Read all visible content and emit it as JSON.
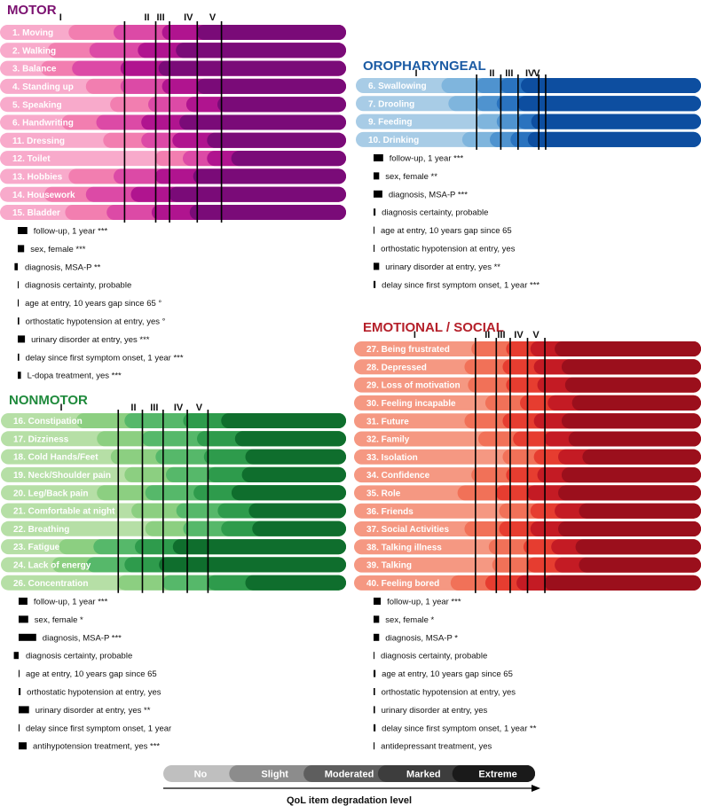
{
  "chart_data": {
    "type": "bar",
    "panels": [
      {
        "id": "motor",
        "title": "MOTOR",
        "title_color": "#7b1170",
        "shades": [
          "#f8aacb",
          "#f27eb0",
          "#dc4aa6",
          "#b0148f",
          "#7a0b78"
        ],
        "stage_labels": [
          "I",
          "II",
          "III",
          "IV",
          "V"
        ],
        "items": [
          {
            "label": "1. Moving",
            "thresholds": [
              22,
              35,
              49,
              59,
              74
            ]
          },
          {
            "label": "2. Walking",
            "thresholds": [
              16,
              28,
              42,
              53,
              68
            ]
          },
          {
            "label": "3. Balance",
            "thresholds": [
              14,
              23,
              37,
              48,
              63
            ]
          },
          {
            "label": "4. Standing up",
            "thresholds": [
              27,
              37,
              49,
              59,
              73
            ]
          },
          {
            "label": "5. Speaking",
            "thresholds": [
              34,
              45,
              56,
              65,
              79
            ]
          },
          {
            "label": "6. Handwriting",
            "thresholds": [
              20,
              30,
              43,
              54,
              68
            ]
          },
          {
            "label": "11. Dressing",
            "thresholds": [
              32,
              43,
              52,
              62,
              76
            ]
          },
          {
            "label": "12. Toilet",
            "thresholds": [
              47,
              55,
              62,
              69,
              80
            ]
          },
          {
            "label": "13. Hobbies",
            "thresholds": [
              22,
              35,
              47,
              58,
              72
            ]
          },
          {
            "label": "14. Housework",
            "thresholds": [
              15,
              27,
              40,
              51,
              66
            ]
          },
          {
            "label": "15. Bladder",
            "thresholds": [
              21,
              33,
              46,
              57,
              71
            ]
          }
        ],
        "stage_lines": [
          36,
          45,
          49,
          57,
          64
        ],
        "covariates": [
          {
            "label": "follow-up, 1 year ***",
            "value": 6
          },
          {
            "label": "sex, female ***",
            "value": 4
          },
          {
            "label": "diagnosis, MSA-P **",
            "value": -2
          },
          {
            "label": "diagnosis certainty, probable",
            "value": 0.3
          },
          {
            "label": "age at entry, 10 years gap since 65 °",
            "value": 0.6
          },
          {
            "label": "orthostatic hypotension at entry, yes °",
            "value": 0.9
          },
          {
            "label": "urinary disorder at entry, yes ***",
            "value": 4.5
          },
          {
            "label": "delay since first symptom onset, 1 year ***",
            "value": 0.9
          },
          {
            "label": "L-dopa treatment, yes ***",
            "value": 2
          }
        ]
      },
      {
        "id": "oropharyngeal",
        "title": "OROPHARYNGEAL",
        "title_color": "#1b5ba4",
        "shades": [
          "#a8cce6",
          "#7fb5dd",
          "#4f93cf",
          "#2a73bf",
          "#0d4ea0"
        ],
        "stage_labels": [
          "I",
          "II",
          "III",
          "IV",
          "V"
        ],
        "items": [
          {
            "label": "6. Swallowing",
            "thresholds": [
              27,
              37,
              44,
              50,
              57
            ]
          },
          {
            "label": "7. Drooling",
            "thresholds": [
              29,
              37,
              43,
              49,
              56
            ]
          },
          {
            "label": "9. Feeding",
            "thresholds": [
              37,
              43,
              49,
              53,
              59
            ]
          },
          {
            "label": "10. Drinking",
            "thresholds": [
              33,
              41,
              47,
              52,
              58
            ]
          }
        ],
        "stage_lines": [
          35,
          42,
          47,
          53,
          55
        ],
        "covariates": [
          {
            "label": "follow-up, 1 year ***",
            "value": 6
          },
          {
            "label": "sex, female **",
            "value": 3.5
          },
          {
            "label": "diagnosis, MSA-P ***",
            "value": 5.5
          },
          {
            "label": "diagnosis certainty, probable",
            "value": 1.2
          },
          {
            "label": "age at entry, 10 years gap since 65",
            "value": 0.3
          },
          {
            "label": "orthostatic hypotension at entry, yes",
            "value": 0.6
          },
          {
            "label": "urinary disorder at entry, yes **",
            "value": 3.5
          },
          {
            "label": "delay since first symptom onset, 1 year ***",
            "value": 1.2
          }
        ]
      },
      {
        "id": "nonmotor",
        "title": "NONMOTOR",
        "title_color": "#1f8a3c",
        "shades": [
          "#b6dfa6",
          "#8ccf81",
          "#56b86a",
          "#2e9b4c",
          "#0f6e2d"
        ],
        "stage_labels": [
          "I",
          "II",
          "III",
          "IV",
          "V"
        ],
        "items": [
          {
            "label": "16. Constipation",
            "thresholds": [
              24,
              38,
              55,
              66,
              82
            ]
          },
          {
            "label": "17. Dizziness",
            "thresholds": [
              30,
              43,
              59,
              70,
              86
            ]
          },
          {
            "label": "18. Cold Hands/Feet",
            "thresholds": [
              34,
              47,
              61,
              73,
              85
            ]
          },
          {
            "label": "19. Neck/Shoulder pain",
            "thresholds": [
              38,
              50,
              62,
              72,
              84
            ]
          },
          {
            "label": "20. Leg/Back pain",
            "thresholds": [
              30,
              44,
              58,
              69,
              82
            ]
          },
          {
            "label": "21. Comfortable at night",
            "thresholds": [
              40,
              53,
              65,
              74,
              86
            ]
          },
          {
            "label": "22. Breathing",
            "thresholds": [
              44,
              55,
              66,
              75,
              87
            ]
          },
          {
            "label": "23. Fatigue",
            "thresholds": [
              19,
              29,
              41,
              52,
              68
            ]
          },
          {
            "label": "24. Lack of energy",
            "thresholds": [
              17,
              27,
              38,
              48,
              64
            ]
          },
          {
            "label": "26. Concentration",
            "thresholds": [
              36,
              49,
              62,
              73,
              86
            ]
          }
        ],
        "stage_lines": [
          34,
          41,
          47,
          54,
          60
        ],
        "covariates": [
          {
            "label": "follow-up, 1 year ***",
            "value": 5.5
          },
          {
            "label": "sex, female *",
            "value": 6
          },
          {
            "label": "diagnosis, MSA-P ***",
            "value": 11
          },
          {
            "label": "diagnosis certainty, probable",
            "value": -3
          },
          {
            "label": "age at entry, 10 years gap since 65",
            "value": 0.3
          },
          {
            "label": "orthostatic hypotension at entry, yes",
            "value": 1.2
          },
          {
            "label": "urinary disorder at entry, yes **",
            "value": 6.5
          },
          {
            "label": "delay since first symptom onset, 1 year",
            "value": 0.3
          },
          {
            "label": "antihypotension treatment, yes ***",
            "value": 5
          }
        ]
      },
      {
        "id": "emotional",
        "title": "EMOTIONAL / SOCIAL",
        "title_color": "#b5202a",
        "shades": [
          "#f59882",
          "#f17158",
          "#e63d30",
          "#c41b24",
          "#9b0f1c"
        ],
        "stage_labels": [
          "I",
          "II",
          "III",
          "IV",
          "V"
        ],
        "items": [
          {
            "label": "27. Being frustrated",
            "thresholds": [
              36,
              46,
              53,
              60,
              70
            ]
          },
          {
            "label": "28. Depressed",
            "thresholds": [
              34,
              45,
              54,
              62,
              72
            ]
          },
          {
            "label": "29. Loss of motivation",
            "thresholds": [
              35,
              46,
              55,
              63,
              74
            ]
          },
          {
            "label": "30. Feeling incapable",
            "thresholds": [
              40,
              50,
              58,
              65,
              74
            ]
          },
          {
            "label": "31. Future",
            "thresholds": [
              34,
              45,
              54,
              62,
              71
            ]
          },
          {
            "label": "32. Family",
            "thresholds": [
              38,
              48,
              57,
              64,
              74
            ]
          },
          {
            "label": "33. Isolation",
            "thresholds": [
              45,
              54,
              61,
              68,
              77
            ]
          },
          {
            "label": "34. Confidence",
            "thresholds": [
              36,
              46,
              55,
              62,
              72
            ]
          },
          {
            "label": "35. Role",
            "thresholds": [
              32,
              43,
              52,
              61,
              71
            ]
          },
          {
            "label": "36. Friends",
            "thresholds": [
              44,
              53,
              60,
              67,
              76
            ]
          },
          {
            "label": "37. Social Activities",
            "thresholds": [
              34,
              44,
              53,
              61,
              70
            ]
          },
          {
            "label": "38. Talking illness",
            "thresholds": [
              41,
              51,
              59,
              66,
              76
            ]
          },
          {
            "label": "39. Talking",
            "thresholds": [
              42,
              52,
              60,
              67,
              77
            ]
          },
          {
            "label": "40. Feeling bored",
            "thresholds": [
              30,
              40,
              49,
              57,
              67
            ]
          }
        ],
        "stage_lines": [
          35,
          41,
          45,
          50,
          55
        ],
        "covariates": [
          {
            "label": "follow-up, 1 year ***",
            "value": 4.5
          },
          {
            "label": "sex, female *",
            "value": 3.5
          },
          {
            "label": "diagnosis, MSA-P *",
            "value": 3.5
          },
          {
            "label": "diagnosis certainty, probable",
            "value": 0.3
          },
          {
            "label": "age at entry, 10 years gap since 65",
            "value": 1.2
          },
          {
            "label": "orthostatic hypotension at entry, yes",
            "value": 0.9
          },
          {
            "label": "urinary disorder at entry, yes",
            "value": 0.9
          },
          {
            "label": "delay since first symptom onset, 1 year **",
            "value": 1.2
          },
          {
            "label": "antidepressant treatment, yes",
            "value": 0.6
          }
        ]
      }
    ],
    "legend": {
      "levels": [
        "No",
        "Slight",
        "Moderated",
        "Marked",
        "Extreme"
      ],
      "colors": [
        "#bfbfbf",
        "#8c8c8c",
        "#5e5e5e",
        "#3d3d3d",
        "#1a1a1a"
      ],
      "xlabel": "QoL item degradation level"
    }
  }
}
